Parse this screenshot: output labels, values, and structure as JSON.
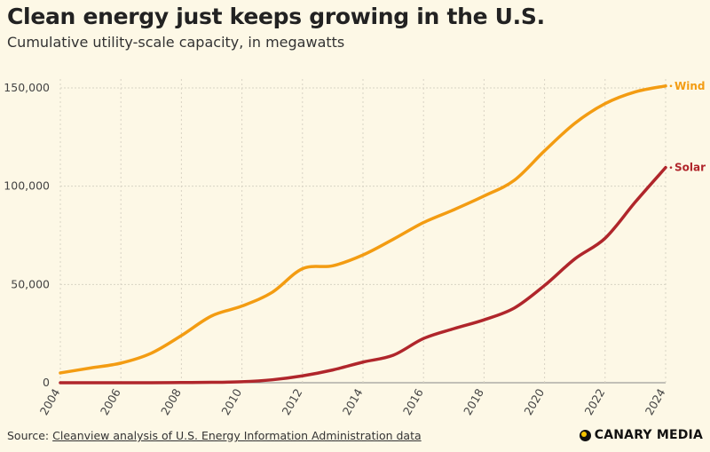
{
  "header": {
    "title": "Clean energy just keeps growing in the U.S.",
    "subtitle": "Cumulative utility-scale capacity, in megawatts"
  },
  "footer": {
    "source_label": "Source:",
    "source_link": "Cleanview analysis of U.S. Energy Information Administration data",
    "brand": "CANARY MEDIA",
    "brand_icon": "canary-dot-icon"
  },
  "colors": {
    "background": "#fdf8e6",
    "wind": "#f39c12",
    "solar": "#b0262b",
    "grid": "#d8d3c4",
    "axis_text": "#444444"
  },
  "chart_data": {
    "type": "line",
    "title": "Clean energy just keeps growing in the U.S.",
    "subtitle": "Cumulative utility-scale capacity, in megawatts",
    "xlabel": "",
    "ylabel": "",
    "x": [
      2004,
      2005,
      2006,
      2007,
      2008,
      2009,
      2010,
      2011,
      2012,
      2013,
      2014,
      2015,
      2016,
      2017,
      2018,
      2019,
      2020,
      2021,
      2022,
      2023,
      2024
    ],
    "xticks": [
      "2004",
      "2006",
      "2008",
      "2010",
      "2012",
      "2014",
      "2016",
      "2018",
      "2020",
      "2022",
      "2024"
    ],
    "xlim": [
      2004,
      2024
    ],
    "ylim": [
      0,
      150000
    ],
    "yticks": [
      0,
      50000,
      100000,
      150000
    ],
    "ytick_labels": [
      "0",
      "50,000",
      "100,000",
      "150,000"
    ],
    "grid": true,
    "legend": "direct labels at line ends",
    "series": [
      {
        "name": "Wind",
        "color": "#f39c12",
        "values": [
          5000,
          7500,
          10000,
          15000,
          24000,
          34000,
          39000,
          46000,
          58000,
          59500,
          65000,
          73000,
          81500,
          88000,
          95000,
          103000,
          118000,
          132000,
          142000,
          148000,
          151000
        ]
      },
      {
        "name": "Solar",
        "color": "#b0262b",
        "values": [
          0,
          0,
          0,
          0,
          100,
          200,
          500,
          1500,
          3500,
          6500,
          10500,
          14000,
          22500,
          27500,
          32000,
          38000,
          49500,
          63000,
          73500,
          92000,
          109500
        ]
      }
    ]
  }
}
